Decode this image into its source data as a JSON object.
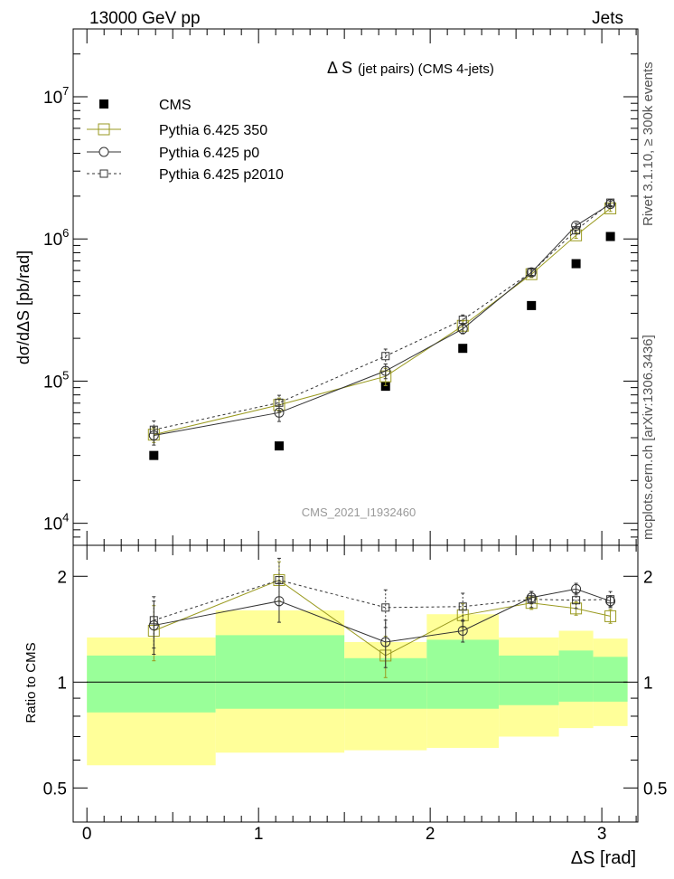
{
  "header": {
    "left": "13000 GeV pp",
    "right": "Jets"
  },
  "side": {
    "rivet": "Rivet 3.1.10, ≥ 300k events",
    "mcplots": "mcplots.cern.ch [arXiv:1306.3436]"
  },
  "chart_data": [
    {
      "type": "scatter",
      "panel": "main",
      "title_main": "Δ S",
      "title_detail": "(jet pairs) (CMS 4-jets)",
      "ylabel": "dσ/dΔS [pb/rad]",
      "yscale": "log",
      "ylim": [
        7000,
        30000000
      ],
      "xlim": [
        -0.08,
        3.21
      ],
      "ytick_labels": [
        "10^4",
        "10^5",
        "10^6",
        "10^7"
      ],
      "watermark": "CMS_2021_I1932460",
      "x": [
        0.39,
        1.12,
        1.74,
        2.19,
        2.59,
        2.85,
        3.05
      ],
      "series": [
        {
          "name": "CMS",
          "style": "data",
          "color": "#000000",
          "values": [
            30000,
            35000,
            92000,
            170000,
            340000,
            670000,
            1040000
          ]
        },
        {
          "name": "Pythia 6.425 350",
          "style": "solid-square",
          "color": "#9a9a20",
          "values": [
            42000,
            68000,
            108000,
            245000,
            565000,
            1060000,
            1640000
          ],
          "errors": [
            5000,
            8000,
            15000,
            20000,
            30000,
            50000,
            80000
          ]
        },
        {
          "name": "Pythia 6.425 p0",
          "style": "solid-circle",
          "color": "#333333",
          "values": [
            41500,
            60000,
            118000,
            233000,
            582000,
            1240000,
            1760000
          ],
          "errors": [
            6000,
            8000,
            14000,
            18000,
            30000,
            50000,
            80000
          ]
        },
        {
          "name": "Pythia 6.425 p2010",
          "style": "dashed-square",
          "color": "#333333",
          "values": [
            45500,
            70500,
            150000,
            270000,
            585000,
            1150000,
            1800000
          ],
          "errors": [
            7000,
            9000,
            18000,
            22000,
            30000,
            60000,
            90000
          ]
        }
      ]
    },
    {
      "type": "scatter",
      "panel": "ratio",
      "ylabel": "Ratio to CMS",
      "xlabel": "ΔS [rad]",
      "yscale": "log",
      "ylim": [
        0.4,
        2.45
      ],
      "xlim": [
        -0.08,
        3.21
      ],
      "xticks": [
        0,
        1,
        2,
        3
      ],
      "xtick_labels": [
        "0",
        "1",
        "2",
        "3"
      ],
      "yticks": [
        0.5,
        1,
        2
      ],
      "ytick_labels": [
        "0.5",
        "1",
        "2"
      ],
      "bands": [
        {
          "x0": 0.0,
          "x1": 0.75,
          "green": [
            0.82,
            1.19
          ],
          "yellow": [
            0.58,
            1.34
          ]
        },
        {
          "x0": 0.75,
          "x1": 1.5,
          "green": [
            0.84,
            1.36
          ],
          "yellow": [
            0.63,
            1.6
          ]
        },
        {
          "x0": 1.5,
          "x1": 1.98,
          "green": [
            0.84,
            1.17
          ],
          "yellow": [
            0.64,
            1.3
          ]
        },
        {
          "x0": 1.98,
          "x1": 2.4,
          "green": [
            0.84,
            1.32
          ],
          "yellow": [
            0.65,
            1.56
          ]
        },
        {
          "x0": 2.4,
          "x1": 2.75,
          "green": [
            0.86,
            1.19
          ],
          "yellow": [
            0.7,
            1.34
          ]
        },
        {
          "x0": 2.75,
          "x1": 2.95,
          "green": [
            0.88,
            1.23
          ],
          "yellow": [
            0.74,
            1.4
          ]
        },
        {
          "x0": 2.95,
          "x1": 3.15,
          "green": [
            0.88,
            1.18
          ],
          "yellow": [
            0.75,
            1.33
          ]
        }
      ],
      "x": [
        0.39,
        1.12,
        1.74,
        2.19,
        2.59,
        2.85,
        3.05
      ],
      "series": [
        {
          "name": "Pythia 6.425 350",
          "style": "solid-square",
          "color": "#9a9a20",
          "values": [
            1.4,
            1.95,
            1.19,
            1.55,
            1.68,
            1.62,
            1.54
          ],
          "errors": [
            0.25,
            0.25,
            0.16,
            0.12,
            0.07,
            0.07,
            0.07
          ]
        },
        {
          "name": "Pythia 6.425 p0",
          "style": "solid-circle",
          "color": "#333333",
          "values": [
            1.45,
            1.7,
            1.3,
            1.4,
            1.74,
            1.84,
            1.7
          ],
          "errors": [
            0.25,
            0.22,
            0.2,
            0.1,
            0.07,
            0.07,
            0.06
          ]
        },
        {
          "name": "Pythia 6.425 p2010",
          "style": "dashed-square",
          "color": "#333333",
          "values": [
            1.5,
            1.95,
            1.63,
            1.64,
            1.72,
            1.71,
            1.72
          ],
          "errors": [
            0.25,
            0.3,
            0.2,
            0.15,
            0.09,
            0.09,
            0.09
          ]
        }
      ]
    }
  ]
}
